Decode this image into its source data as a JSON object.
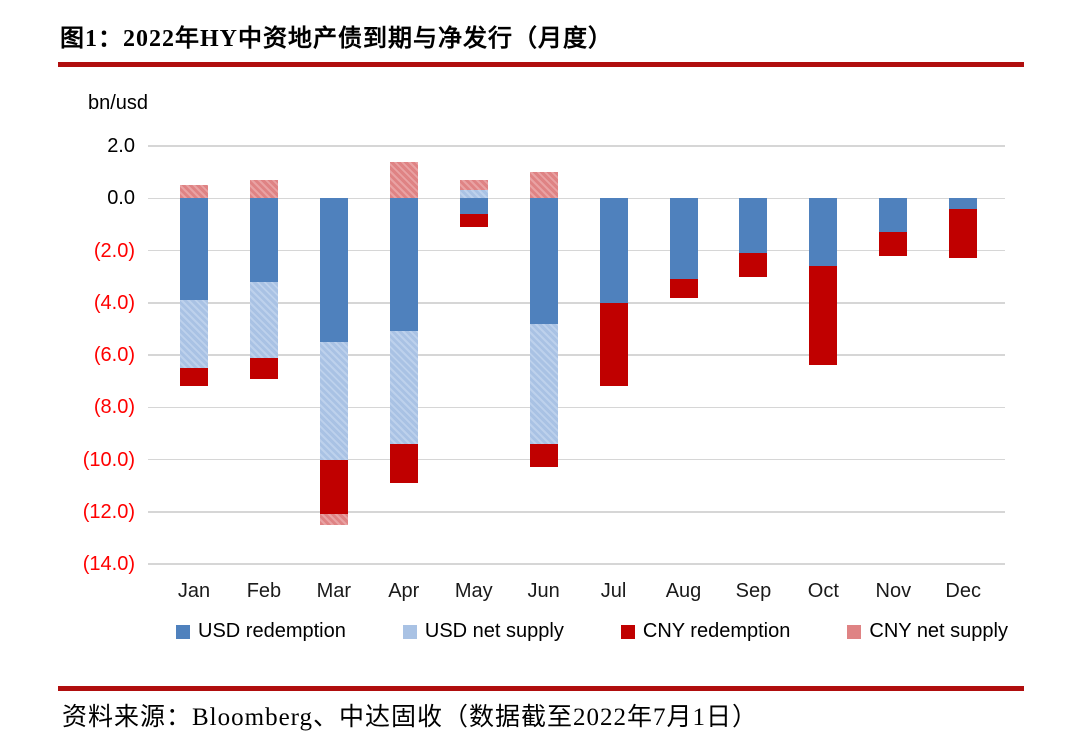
{
  "title": "图1：2022年HY中资地产债到期与净发行（月度）",
  "footer": {
    "source": "资料来源：Bloomberg、中达固收（数据截至2022年7月1日）"
  },
  "accent_rule_color": "#b00e0e",
  "chart_data": {
    "type": "bar",
    "stacked": true,
    "unit_label": "bn/usd",
    "title": "2022年HY中资地产债到期与净发行（月度）",
    "xlabel": "",
    "ylabel": "bn/usd",
    "ylim": [
      -14.0,
      2.0
    ],
    "ytick_step": 2.0,
    "ytick_labels": [
      "2.0",
      "0.0",
      "(2.0)",
      "(4.0)",
      "(6.0)",
      "(8.0)",
      "(10.0)",
      "(12.0)",
      "(14.0)"
    ],
    "positive_label_color": "#000000",
    "negative_label_color": "#ff0000",
    "grid": true,
    "gridline_color": "#d6d6d6",
    "legend_position": "bottom",
    "categories": [
      "Jan",
      "Feb",
      "Mar",
      "Apr",
      "May",
      "Jun",
      "Jul",
      "Aug",
      "Sep",
      "Oct",
      "Nov",
      "Dec"
    ],
    "series": [
      {
        "name": "USD redemption",
        "slug": "usd-redemption",
        "color": "#4f81bd",
        "hatch": false,
        "values": [
          -3.9,
          -3.2,
          -5.5,
          -5.1,
          -0.6,
          -4.8,
          -4.0,
          -3.1,
          -2.1,
          -2.6,
          -1.3,
          -0.4
        ]
      },
      {
        "name": "USD net supply",
        "slug": "usd-net-supply",
        "color": "#a9c2e4",
        "stripe": "#bdd1ec",
        "hatch": true,
        "values": [
          -2.6,
          -2.9,
          -4.5,
          -4.3,
          0.3,
          -4.6,
          0,
          0,
          0,
          0,
          0,
          0
        ]
      },
      {
        "name": "CNY redemption",
        "slug": "cny-redemption",
        "color": "#c00000",
        "hatch": false,
        "values": [
          -0.7,
          -0.8,
          -2.1,
          -1.5,
          -0.5,
          -0.9,
          -3.2,
          -0.7,
          -0.9,
          -3.8,
          -0.9,
          -1.9
        ]
      },
      {
        "name": "CNY net supply",
        "slug": "cny-net-supply",
        "color": "#df8384",
        "stripe": "#e9a2a3",
        "hatch": true,
        "values": [
          0.5,
          0.7,
          -0.4,
          1.4,
          0.4,
          1.0,
          0,
          0,
          0,
          0,
          0,
          0
        ]
      }
    ]
  }
}
